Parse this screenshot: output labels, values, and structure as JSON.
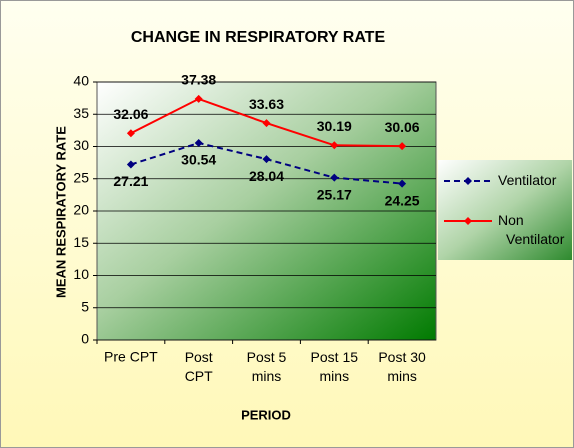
{
  "chart_data": {
    "type": "line",
    "title": "CHANGE IN RESPIRATORY RATE",
    "x_label": "PERIOD",
    "y_label": "MEAN RESPIRATORY RATE",
    "categories": [
      "Pre CPT",
      "Post\nCPT",
      "Post 5\nmins",
      "Post 15\nmins",
      "Post 30\nmins"
    ],
    "series": [
      {
        "name": "Ventilator",
        "color": "#000080",
        "dashed": true,
        "values": [
          27.21,
          30.54,
          28.04,
          25.17,
          24.25
        ]
      },
      {
        "name": "Non Ventilator",
        "color": "#ff0000",
        "dashed": false,
        "values": [
          32.06,
          37.38,
          33.63,
          30.19,
          30.06
        ]
      }
    ],
    "ylim": [
      0,
      40
    ],
    "yticks": [
      0,
      5,
      10,
      15,
      20,
      25,
      30,
      35,
      40
    ],
    "grid": true,
    "legend": "right"
  }
}
